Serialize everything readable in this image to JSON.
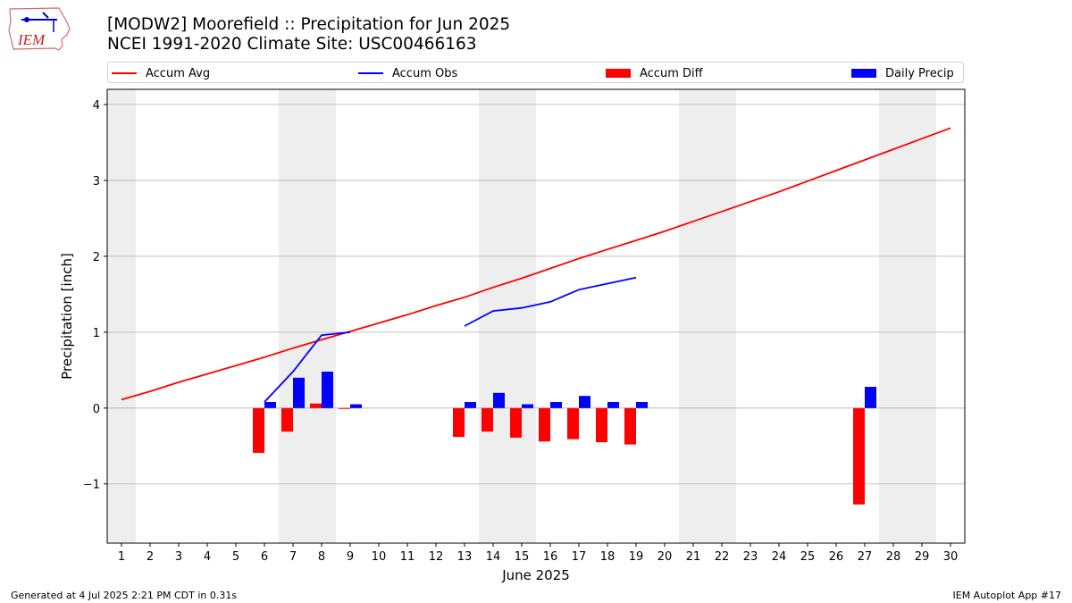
{
  "logo": {
    "text": "IEM",
    "icon": "iowa-state-outline-with-weather-station"
  },
  "title": {
    "line1": "[MODW2] Moorefield :: Precipitation for Jun 2025",
    "line2": "NCEI 1991-2020 Climate Site: USC00466163"
  },
  "footer": {
    "left": "Generated at 4 Jul 2025 2:21 PM CDT in 0.31s",
    "right": "IEM Autoplot App #17"
  },
  "colors": {
    "avg": "#ff0000",
    "obs": "#0000ff",
    "diff": "#ff0000",
    "daily": "#0000ff",
    "weekend_shade": "#eeeeee",
    "grid": "#b0b0b0"
  },
  "chart_data": {
    "type": "bar",
    "xlabel": "June 2025",
    "ylabel": "Precipitation [inch]",
    "xlim": [
      0.5,
      30.5
    ],
    "ylim": [
      -1.78,
      4.2
    ],
    "xticks": [
      1,
      2,
      3,
      4,
      5,
      6,
      7,
      8,
      9,
      10,
      11,
      12,
      13,
      14,
      15,
      16,
      17,
      18,
      19,
      20,
      21,
      22,
      23,
      24,
      25,
      26,
      27,
      28,
      29,
      30
    ],
    "yticks": [
      -1,
      0,
      1,
      2,
      3,
      4
    ],
    "ytick_labels": [
      "−1",
      "0",
      "1",
      "2",
      "3",
      "4"
    ],
    "grid": "horizontal",
    "legend_position": "top",
    "weekend_days": [
      1,
      7,
      8,
      14,
      15,
      21,
      22,
      28,
      29
    ],
    "series": [
      {
        "name": "Accum Avg",
        "kind": "line",
        "x": [
          1,
          2,
          3,
          4,
          5,
          6,
          7,
          8,
          9,
          10,
          11,
          12,
          13,
          14,
          15,
          16,
          17,
          18,
          19,
          20,
          21,
          22,
          23,
          24,
          25,
          26,
          27,
          28,
          29,
          30
        ],
        "values": [
          0.11,
          0.22,
          0.34,
          0.45,
          0.56,
          0.67,
          0.79,
          0.9,
          1.01,
          1.12,
          1.23,
          1.35,
          1.46,
          1.59,
          1.71,
          1.84,
          1.97,
          2.09,
          2.21,
          2.33,
          2.46,
          2.59,
          2.72,
          2.85,
          2.99,
          3.13,
          3.27,
          3.41,
          3.55,
          3.69
        ]
      },
      {
        "name": "Accum Obs",
        "kind": "line",
        "x": [
          6,
          7,
          8,
          9,
          null,
          13,
          14,
          15,
          16,
          17,
          18,
          19
        ],
        "values": [
          0.08,
          0.48,
          0.96,
          1.0,
          null,
          1.08,
          1.28,
          1.32,
          1.4,
          1.56,
          1.64,
          1.72
        ]
      },
      {
        "name": "Accum Diff",
        "kind": "bar",
        "x": [
          6,
          7,
          8,
          9,
          13,
          14,
          15,
          16,
          17,
          18,
          19,
          27
        ],
        "values": [
          -0.59,
          -0.31,
          0.06,
          -0.01,
          -0.38,
          -0.31,
          -0.39,
          -0.44,
          -0.41,
          -0.45,
          -0.48,
          -1.27
        ]
      },
      {
        "name": "Daily Precip",
        "kind": "bar",
        "x": [
          6,
          7,
          8,
          9,
          13,
          14,
          15,
          16,
          17,
          18,
          19,
          27
        ],
        "values": [
          0.08,
          0.4,
          0.48,
          0.05,
          0.08,
          0.2,
          0.05,
          0.08,
          0.16,
          0.08,
          0.08,
          0.28
        ]
      }
    ]
  }
}
